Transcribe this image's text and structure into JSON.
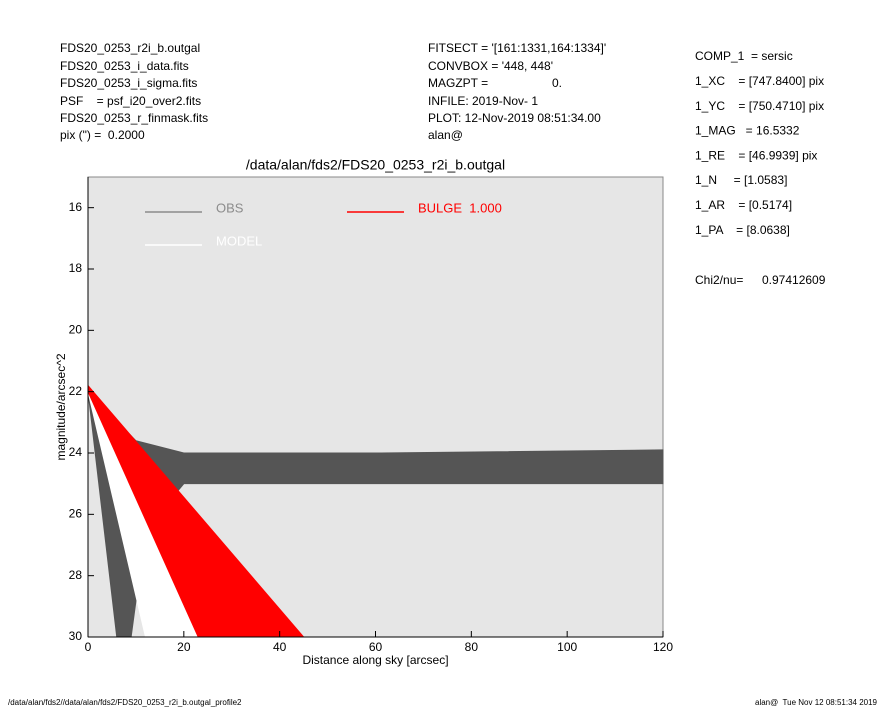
{
  "header": {
    "left": [
      "FDS20_0253_r2i_b.outgal",
      "FDS20_0253_i_data.fits",
      "FDS20_0253_i_sigma.fits",
      "PSF    = psf_i20_over2.fits",
      "FDS20_0253_r_finmask.fits",
      "pix (\") =  0.2000"
    ],
    "middle": [
      "FITSECT = '[161:1331,164:1334]'",
      "CONVBOX = '448, 448'",
      "MAGZPT =",
      "INFILE: 2019-Nov- 1",
      "PLOT: 12-Nov-2019 08:51:34.00",
      "alan@"
    ],
    "magzpt_value": "0.",
    "right": [
      "COMP_1  = sersic",
      "1_XC    = [747.8400] pix",
      "1_YC    = [750.4710] pix",
      "1_MAG   = 16.5332",
      "1_RE    = [46.9939] pix",
      "1_N     = [1.0583]",
      "1_AR    = [0.5174]",
      "1_PA    = [8.0638]"
    ],
    "chi2_label": "Chi2/nu=",
    "chi2_value": "0.97412609"
  },
  "footer": {
    "left": "/data/alan/fds2//data/alan/fds2/FDS20_0253_r2i_b.outgal_profile2",
    "right": "alan@  Tue Nov 12 08:51:34 2019"
  },
  "chart_data": {
    "type": "polygon",
    "title": "/data/alan/fds2/FDS20_0253_r2i_b.outgal",
    "x_label": "Distance along sky [arcsec]",
    "y_label": "magnitude/arcsec^2",
    "xlim": [
      0,
      120
    ],
    "xticks": [
      0,
      20,
      40,
      60,
      80,
      100,
      120
    ],
    "ylim": [
      30,
      15
    ],
    "yticks": [
      16,
      18,
      20,
      22,
      24,
      26,
      28,
      30
    ],
    "grid": false,
    "series": [
      {
        "name": "OBS",
        "color": "#8c8c8c",
        "fill": "#555555",
        "x": [
          0,
          5,
          10,
          20,
          60,
          120,
          120,
          60,
          20,
          12,
          9,
          6,
          0
        ],
        "values": [
          21.8,
          22.8,
          23.6,
          24.0,
          24.0,
          23.9,
          25.0,
          25.0,
          25.0,
          26.5,
          30,
          30,
          22.0
        ]
      },
      {
        "name": "MODEL",
        "color": "#ffffff",
        "fill": "#ffffff",
        "x": [
          0,
          23,
          12,
          0
        ],
        "values": [
          21.8,
          30,
          30,
          22.0
        ]
      },
      {
        "name": "BULGE  1.000",
        "color": "#ff0000",
        "fill": "#ff0000",
        "x": [
          0,
          45,
          23,
          0
        ],
        "values": [
          21.8,
          30,
          30,
          22.0
        ]
      }
    ]
  }
}
